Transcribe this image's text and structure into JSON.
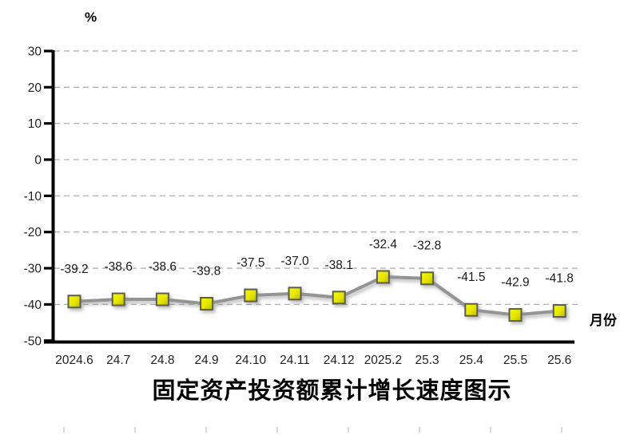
{
  "chart_data": {
    "type": "line",
    "title": "固定资产投资额累计增长速度图示",
    "y_unit_label": "%",
    "x_unit_label": "月份",
    "categories": [
      "2024.6",
      "24.7",
      "24.8",
      "24.9",
      "24.10",
      "24.11",
      "24.12",
      "2025.2",
      "25.3",
      "25.4",
      "25.5",
      "25.6"
    ],
    "series": [
      {
        "name": "固定资产投资额累计增长速度",
        "values": [
          -39.2,
          -38.6,
          -38.6,
          -39.8,
          -37.5,
          -37.0,
          -38.1,
          -32.4,
          -32.8,
          -41.5,
          -42.9,
          -41.8
        ]
      }
    ],
    "data_label_decimals": 1,
    "ylim": [
      -50,
      30
    ],
    "yticks": [
      30,
      20,
      10,
      0,
      -10,
      -20,
      -30,
      -40,
      -50
    ],
    "grid": true,
    "legend": false,
    "colors": {
      "line": "#949494",
      "marker_fill_light": "#f9f905",
      "marker_fill_mid": "#e4e400",
      "marker_fill_dark": "#bcbc00",
      "marker_border": "#5c5c50",
      "gridline": "#b3b3b3",
      "axis": "#000000",
      "tick_label": "#1f1f1f",
      "data_label": "#1a1a1a",
      "bottom_tick": "#c9cbdb"
    }
  }
}
